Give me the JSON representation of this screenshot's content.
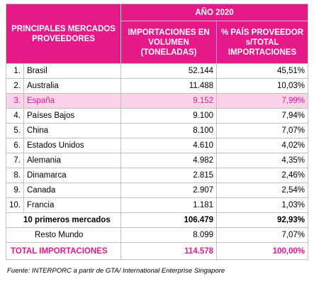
{
  "table": {
    "header": {
      "markets": "PRINCIPALES MERCADOS PROVEEDORES",
      "year": "AÑO 2020",
      "volume": "IMPORTACIONES EN VOLUMEN (TONELADAS)",
      "share": "% PAÍS PROVEEDOR s/TOTAL IMPORTACIONES"
    },
    "rows": [
      [
        "1.",
        "Brasil",
        "52.144",
        "45,51%"
      ],
      [
        "2.",
        "Australia",
        "11.488",
        "10,03%"
      ],
      [
        "3.",
        "España",
        "9.152",
        "7,99%"
      ],
      [
        "4.",
        "Países Bajos",
        "9.100",
        "7,94%"
      ],
      [
        "5.",
        "China",
        "8.100",
        "7,07%"
      ],
      [
        "6.",
        "Estados Unidos",
        "4.610",
        "4,02%"
      ],
      [
        "7.",
        "Alemania",
        "4.982",
        "4,35%"
      ],
      [
        "8.",
        "Dinamarca",
        "2.815",
        "2,46%"
      ],
      [
        "9.",
        "Canada",
        "2.907",
        "2,54%"
      ],
      [
        "10.",
        "Francia",
        "1.181",
        "1,03%"
      ]
    ],
    "top10": [
      "10 primeros mercados",
      "106.479",
      "92,93%"
    ],
    "rest": [
      "Resto Mundo",
      "8.099",
      "7,07%"
    ],
    "total": [
      "TOTAL IMPORTACIONES",
      "114.578",
      "100,00%"
    ]
  },
  "source": "Fuente: INTERPORC a partir de GTA/ International Enterprise Singapore"
}
